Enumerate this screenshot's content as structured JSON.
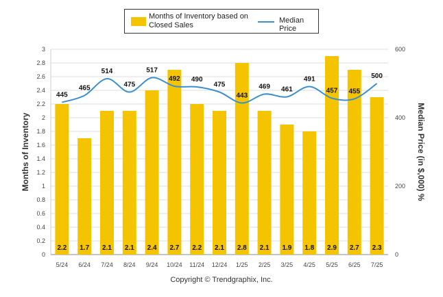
{
  "legend": {
    "bar_label": "Months of Inventory based on Closed Sales",
    "line_label": "Median Price"
  },
  "copyright": "Copyright © Trendgraphix, Inc.",
  "colors": {
    "bar": "#F5C400",
    "line": "#3A8FD0",
    "grid": "#dddddd"
  },
  "chart_data": {
    "type": "bar",
    "categories": [
      "5/24",
      "6/24",
      "7/24",
      "8/24",
      "9/24",
      "10/24",
      "11/24",
      "12/24",
      "1/25",
      "2/25",
      "3/25",
      "4/25",
      "5/25",
      "6/25",
      "7/25"
    ],
    "series": [
      {
        "name": "Months of Inventory based on Closed Sales",
        "type": "bar",
        "axis": "left",
        "values": [
          2.2,
          1.7,
          2.1,
          2.1,
          2.4,
          2.7,
          2.2,
          2.1,
          2.8,
          2.1,
          1.9,
          1.8,
          2.9,
          2.7,
          2.3
        ],
        "value_labels": [
          "2.2",
          "1.7",
          "2.1",
          "2.1",
          "2.4",
          "2.7",
          "2.2",
          "2.1",
          "2.8",
          "2.1",
          "1.9",
          "1.8",
          "2.9",
          "2.7",
          "2.3"
        ]
      },
      {
        "name": "Median Price",
        "type": "line",
        "axis": "right",
        "values": [
          445,
          465,
          514,
          475,
          517,
          492,
          490,
          475,
          443,
          469,
          461,
          491,
          457,
          455,
          500
        ],
        "value_labels": [
          "445",
          "465",
          "514",
          "475",
          "517",
          "492",
          "490",
          "475",
          "443",
          "469",
          "461",
          "491",
          "457",
          "455",
          "500"
        ]
      }
    ],
    "ylabel": "Months of Inventory",
    "ylabel_right": "Median Price (in $,000) %",
    "ylim": [
      0,
      3
    ],
    "ylim_right": [
      0,
      600
    ],
    "yticks": [
      "0",
      "0.2",
      "0.4",
      "0.6",
      "0.8",
      "1",
      "1.2",
      "1.4",
      "1.6",
      "1.8",
      "2",
      "2.2",
      "2.4",
      "2.6",
      "2.8",
      "3"
    ],
    "yticks_right": [
      "0",
      "200",
      "400",
      "600"
    ],
    "grid": true,
    "legend_position": "top-center"
  }
}
